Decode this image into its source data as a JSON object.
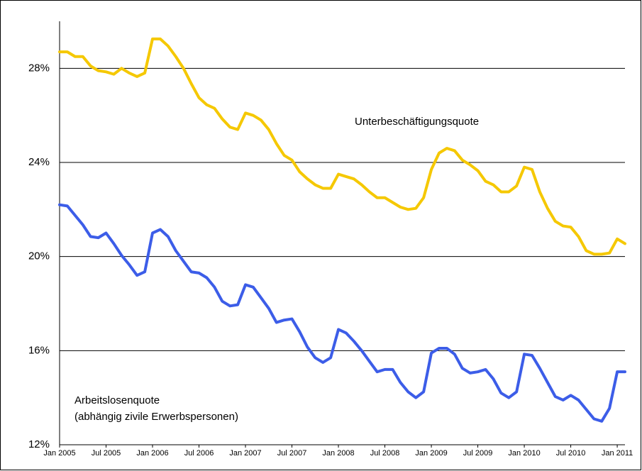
{
  "chart_data": {
    "type": "line",
    "categories": [
      "Jan 2005",
      null,
      null,
      null,
      null,
      null,
      "Jul 2005",
      null,
      null,
      null,
      null,
      null,
      "Jan 2006",
      null,
      null,
      null,
      null,
      null,
      "Jul 2006",
      null,
      null,
      null,
      null,
      null,
      "Jan 2007",
      null,
      null,
      null,
      null,
      null,
      "Jul 2007",
      null,
      null,
      null,
      null,
      null,
      "Jan 2008",
      null,
      null,
      null,
      null,
      null,
      "Jul 2008",
      null,
      null,
      null,
      null,
      null,
      "Jan 2009",
      null,
      null,
      null,
      null,
      null,
      "Jul 2009",
      null,
      null,
      null,
      null,
      null,
      "Jan 2010",
      null,
      null,
      null,
      null,
      null,
      "Jul 2010",
      null,
      null,
      null,
      null,
      null,
      "Jan 2011",
      null
    ],
    "series": [
      {
        "name": "Unterbeschäftigungsquote",
        "color": "#f5c800",
        "values": [
          28.7,
          28.7,
          28.5,
          28.5,
          28.1,
          27.9,
          27.85,
          27.75,
          28.0,
          27.8,
          27.65,
          27.8,
          29.25,
          29.25,
          28.95,
          28.5,
          28.0,
          27.35,
          26.75,
          26.45,
          26.3,
          25.85,
          25.5,
          25.4,
          26.1,
          26.0,
          25.8,
          25.4,
          24.8,
          24.3,
          24.1,
          23.6,
          23.3,
          23.05,
          22.9,
          22.9,
          23.5,
          23.4,
          23.3,
          23.05,
          22.75,
          22.5,
          22.5,
          22.3,
          22.1,
          22.0,
          22.05,
          22.5,
          23.7,
          24.4,
          24.6,
          24.5,
          24.1,
          23.9,
          23.65,
          23.2,
          23.05,
          22.75,
          22.75,
          23.0,
          23.8,
          23.7,
          22.75,
          22.05,
          21.5,
          21.3,
          21.25,
          20.85,
          20.25,
          20.1,
          20.1,
          20.15,
          20.75,
          20.55
        ]
      },
      {
        "name": "Arbeitslosenquote",
        "color": "#3c5de8",
        "values": [
          22.2,
          22.15,
          21.75,
          21.35,
          20.85,
          20.8,
          21.0,
          20.55,
          20.05,
          19.65,
          19.2,
          19.35,
          21.0,
          21.15,
          20.85,
          20.25,
          19.8,
          19.35,
          19.3,
          19.1,
          18.7,
          18.1,
          17.9,
          17.95,
          18.8,
          18.7,
          18.25,
          17.8,
          17.2,
          17.3,
          17.35,
          16.8,
          16.15,
          15.7,
          15.5,
          15.7,
          16.9,
          16.75,
          16.4,
          16.0,
          15.55,
          15.1,
          15.2,
          15.2,
          14.65,
          14.25,
          14.0,
          14.25,
          15.9,
          16.1,
          16.1,
          15.85,
          15.25,
          15.05,
          15.1,
          15.2,
          14.8,
          14.2,
          14.0,
          14.25,
          15.85,
          15.8,
          15.25,
          14.65,
          14.05,
          13.9,
          14.1,
          13.9,
          13.5,
          13.1,
          13.0,
          13.55,
          15.1,
          15.1
        ]
      }
    ],
    "annotations": [
      "(abhängig zivile Erwerbspersonen)"
    ],
    "ylim": [
      12,
      30
    ],
    "yticks": [
      {
        "value": 12,
        "label": "12%"
      },
      {
        "value": 16,
        "label": "16%"
      },
      {
        "value": 20,
        "label": "20%"
      },
      {
        "value": 24,
        "label": "24%"
      },
      {
        "value": 28,
        "label": "28%"
      }
    ],
    "grid": true
  }
}
